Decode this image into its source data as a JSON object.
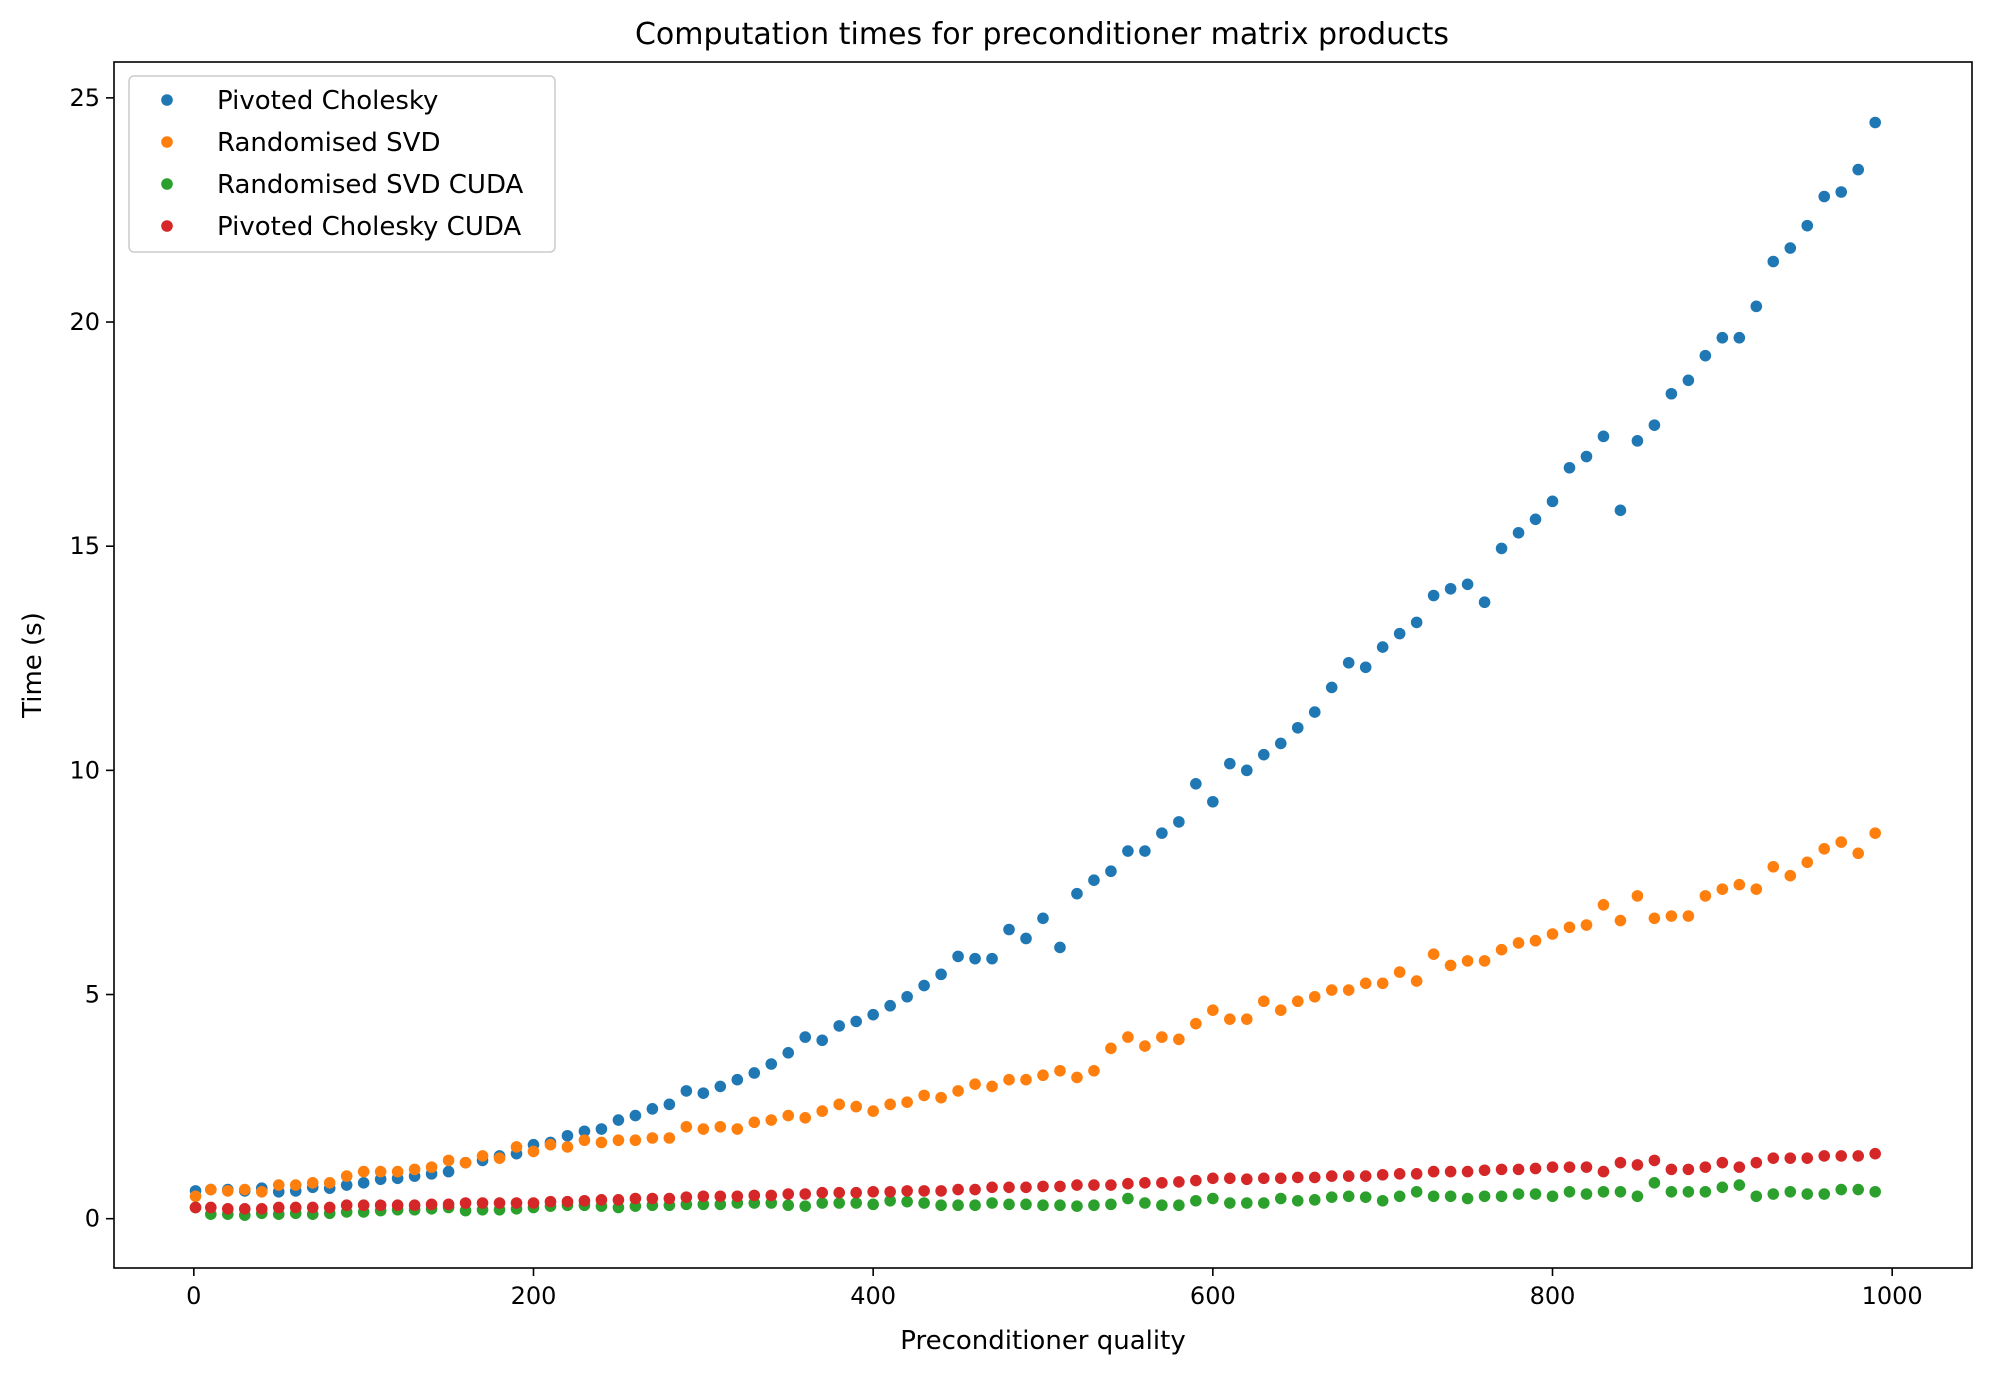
{
  "chart_data": {
    "type": "scatter",
    "title": "Computation times for preconditioner matrix products",
    "xlabel": "Preconditioner quality",
    "ylabel": "Time (s)",
    "xlim": [
      -47,
      1047
    ],
    "ylim": [
      -1.1,
      25.8
    ],
    "xticks": [
      0,
      200,
      400,
      600,
      800,
      1000
    ],
    "yticks": [
      0,
      5,
      10,
      15,
      20,
      25
    ],
    "grid": false,
    "legend_position": "top-left",
    "x": [
      1,
      10,
      20,
      30,
      40,
      50,
      60,
      70,
      80,
      90,
      100,
      110,
      120,
      130,
      140,
      150,
      160,
      170,
      180,
      190,
      200,
      210,
      220,
      230,
      240,
      250,
      260,
      270,
      280,
      290,
      300,
      310,
      320,
      330,
      340,
      350,
      360,
      370,
      380,
      390,
      400,
      410,
      420,
      430,
      440,
      450,
      460,
      470,
      480,
      490,
      500,
      510,
      520,
      530,
      540,
      550,
      560,
      570,
      580,
      590,
      600,
      610,
      620,
      630,
      640,
      650,
      660,
      670,
      680,
      690,
      700,
      710,
      720,
      730,
      740,
      750,
      760,
      770,
      780,
      790,
      800,
      810,
      820,
      830,
      840,
      850,
      860,
      870,
      880,
      890,
      900,
      910,
      920,
      930,
      940,
      950,
      960,
      970,
      980,
      990
    ],
    "series": [
      {
        "name": "Pivoted Cholesky",
        "color": "#1f77b4",
        "values": [
          0.62,
          0.65,
          0.65,
          0.62,
          0.68,
          0.6,
          0.62,
          0.7,
          0.68,
          0.75,
          0.8,
          0.88,
          0.9,
          0.95,
          1.0,
          1.05,
          1.25,
          1.3,
          1.4,
          1.45,
          1.65,
          1.7,
          1.85,
          1.95,
          2.0,
          2.2,
          2.3,
          2.45,
          2.55,
          2.85,
          2.8,
          2.95,
          3.1,
          3.25,
          3.45,
          3.7,
          4.05,
          3.98,
          4.3,
          4.4,
          4.55,
          4.75,
          4.95,
          5.2,
          5.45,
          5.85,
          5.8,
          5.8,
          6.45,
          6.25,
          6.7,
          6.05,
          7.25,
          7.55,
          7.75,
          8.2,
          8.2,
          8.6,
          8.85,
          9.7,
          9.3,
          10.15,
          10.0,
          10.35,
          10.6,
          10.95,
          11.3,
          11.85,
          12.4,
          12.3,
          12.75,
          13.05,
          13.3,
          13.9,
          14.05,
          14.15,
          13.75,
          14.95,
          15.3,
          15.6,
          16.0,
          16.75,
          17.0,
          17.45,
          15.8,
          17.35,
          17.7,
          18.4,
          18.7,
          19.25,
          19.65,
          19.65,
          20.35,
          21.35,
          21.65,
          22.15,
          22.8,
          22.9,
          23.4,
          24.45
        ]
      },
      {
        "name": "Randomised SVD",
        "color": "#ff7f0e",
        "values": [
          0.5,
          0.65,
          0.62,
          0.65,
          0.6,
          0.75,
          0.75,
          0.8,
          0.8,
          0.95,
          1.05,
          1.05,
          1.05,
          1.1,
          1.15,
          1.3,
          1.25,
          1.4,
          1.35,
          1.6,
          1.5,
          1.65,
          1.6,
          1.75,
          1.7,
          1.75,
          1.75,
          1.8,
          1.8,
          2.05,
          2.0,
          2.05,
          2.0,
          2.15,
          2.2,
          2.3,
          2.25,
          2.4,
          2.55,
          2.5,
          2.4,
          2.55,
          2.6,
          2.75,
          2.7,
          2.85,
          3.0,
          2.95,
          3.1,
          3.1,
          3.2,
          3.3,
          3.15,
          3.3,
          3.8,
          4.05,
          3.85,
          4.05,
          4.0,
          4.35,
          4.65,
          4.45,
          4.45,
          4.85,
          4.65,
          4.85,
          4.95,
          5.1,
          5.1,
          5.25,
          5.25,
          5.5,
          5.3,
          5.9,
          5.65,
          5.75,
          5.75,
          6.0,
          6.15,
          6.2,
          6.35,
          6.5,
          6.55,
          7.0,
          6.65,
          7.2,
          6.7,
          6.75,
          6.75,
          7.2,
          7.35,
          7.45,
          7.35,
          7.85,
          7.65,
          7.95,
          8.25,
          8.4,
          8.15,
          8.6
        ]
      },
      {
        "name": "Randomised SVD CUDA",
        "color": "#2ca02c",
        "values": [
          0.25,
          0.1,
          0.1,
          0.08,
          0.12,
          0.1,
          0.12,
          0.1,
          0.12,
          0.15,
          0.15,
          0.18,
          0.2,
          0.2,
          0.22,
          0.25,
          0.18,
          0.2,
          0.2,
          0.22,
          0.25,
          0.28,
          0.3,
          0.3,
          0.28,
          0.25,
          0.28,
          0.3,
          0.3,
          0.32,
          0.32,
          0.32,
          0.35,
          0.35,
          0.35,
          0.3,
          0.28,
          0.35,
          0.35,
          0.35,
          0.32,
          0.4,
          0.38,
          0.35,
          0.3,
          0.3,
          0.3,
          0.35,
          0.32,
          0.32,
          0.3,
          0.3,
          0.28,
          0.3,
          0.32,
          0.45,
          0.35,
          0.3,
          0.3,
          0.4,
          0.45,
          0.35,
          0.35,
          0.35,
          0.45,
          0.4,
          0.42,
          0.48,
          0.5,
          0.48,
          0.4,
          0.5,
          0.6,
          0.5,
          0.5,
          0.45,
          0.5,
          0.5,
          0.55,
          0.55,
          0.5,
          0.6,
          0.55,
          0.6,
          0.6,
          0.5,
          0.8,
          0.6,
          0.6,
          0.6,
          0.7,
          0.75,
          0.5,
          0.55,
          0.6,
          0.55,
          0.55,
          0.65,
          0.65,
          0.6
        ]
      },
      {
        "name": "Pivoted Cholesky CUDA",
        "color": "#d62728",
        "values": [
          0.25,
          0.25,
          0.22,
          0.22,
          0.22,
          0.25,
          0.25,
          0.25,
          0.25,
          0.3,
          0.3,
          0.3,
          0.3,
          0.3,
          0.32,
          0.32,
          0.35,
          0.35,
          0.35,
          0.35,
          0.35,
          0.38,
          0.38,
          0.4,
          0.42,
          0.42,
          0.45,
          0.45,
          0.45,
          0.48,
          0.5,
          0.5,
          0.5,
          0.52,
          0.52,
          0.55,
          0.55,
          0.58,
          0.58,
          0.58,
          0.6,
          0.6,
          0.62,
          0.62,
          0.62,
          0.65,
          0.65,
          0.7,
          0.7,
          0.7,
          0.72,
          0.72,
          0.75,
          0.75,
          0.75,
          0.78,
          0.8,
          0.8,
          0.82,
          0.85,
          0.9,
          0.9,
          0.88,
          0.9,
          0.9,
          0.92,
          0.92,
          0.95,
          0.95,
          0.95,
          0.98,
          1.0,
          1.0,
          1.05,
          1.05,
          1.05,
          1.08,
          1.1,
          1.1,
          1.12,
          1.15,
          1.15,
          1.15,
          1.05,
          1.25,
          1.2,
          1.3,
          1.1,
          1.1,
          1.15,
          1.25,
          1.15,
          1.25,
          1.35,
          1.35,
          1.35,
          1.4,
          1.4,
          1.4,
          1.45
        ]
      }
    ]
  }
}
